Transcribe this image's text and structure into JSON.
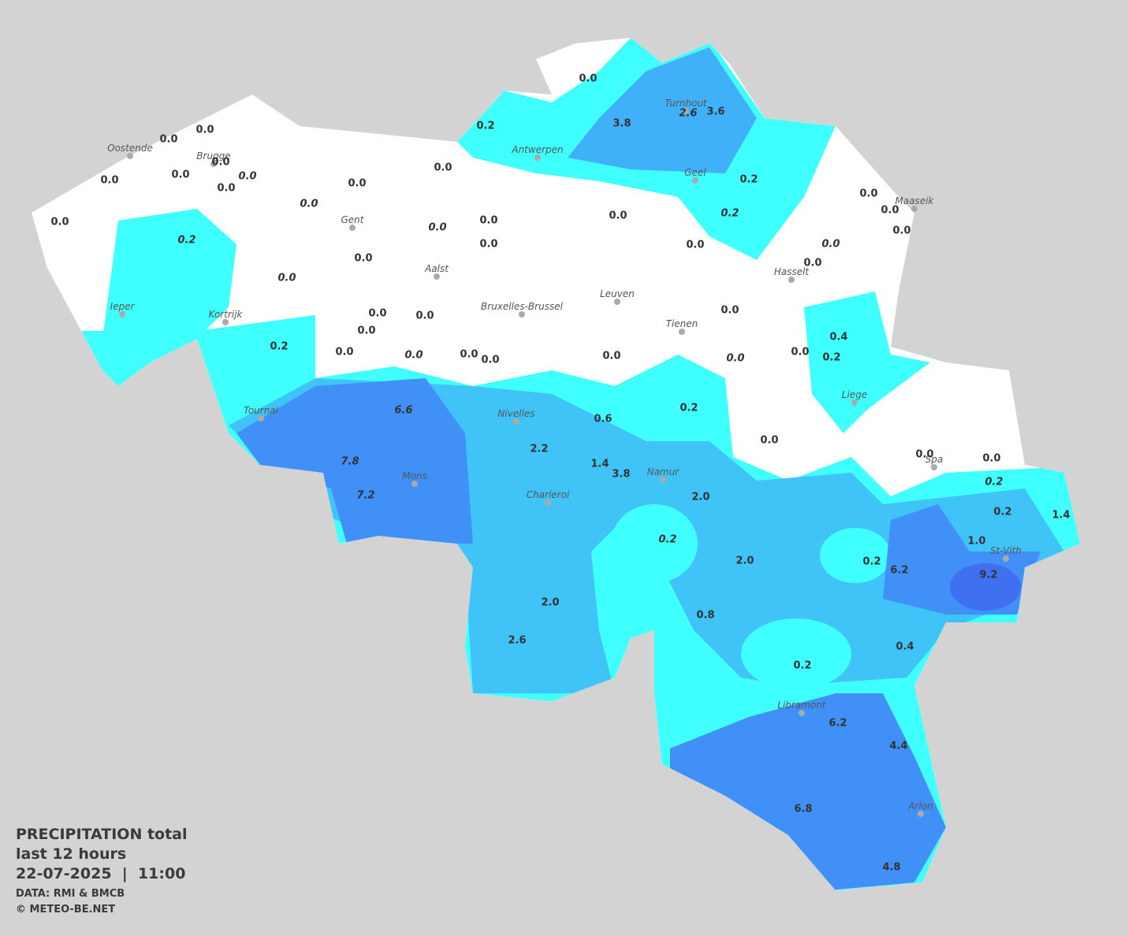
{
  "legend": {
    "title": "PRECIPITATION total",
    "period": "last 12 hours",
    "datetime": "22-07-2025  |  11:00",
    "source": "DATA: RMI & BMCB",
    "copyright": "© METEO-BE.NET"
  },
  "cities": [
    "Oostende",
    "Brugge",
    "Antwerpen",
    "Turnhout",
    "Geel",
    "Maaseik",
    "Gent",
    "Aalst",
    "Hasselt",
    "Leuven",
    "Ieper",
    "Bruxelles-Brussel",
    "Kortrijk",
    "Tienen",
    "Liege",
    "Tournai",
    "Nivelles",
    "Spa",
    "Mons",
    "Namur",
    "Charleroi",
    "St-Vith",
    "Libramont",
    "Arlon"
  ],
  "stations": [
    {
      "label": "0.0",
      "italic": false
    },
    {
      "label": "0.2",
      "italic": false
    },
    {
      "label": "3.8",
      "italic": false
    },
    {
      "label": "2.6",
      "italic": true
    },
    {
      "label": "3.6",
      "italic": false
    },
    {
      "label": "0.0",
      "italic": false
    },
    {
      "label": "0.0",
      "italic": false
    },
    {
      "label": "0.0",
      "italic": false
    },
    {
      "label": "0.0",
      "italic": false
    },
    {
      "label": "0.0",
      "italic": true
    },
    {
      "label": "0.0",
      "italic": false
    },
    {
      "label": "0.0",
      "italic": false
    },
    {
      "label": "0.0",
      "italic": false
    },
    {
      "label": "0.0",
      "italic": false
    },
    {
      "label": "0.2",
      "italic": false
    },
    {
      "label": "0.2",
      "italic": true
    },
    {
      "label": "0.0",
      "italic": true
    },
    {
      "label": "0.0",
      "italic": false
    },
    {
      "label": "0.2",
      "italic": true
    },
    {
      "label": "0.0",
      "italic": false
    },
    {
      "label": "0.0",
      "italic": true
    },
    {
      "label": "0.0",
      "italic": false
    },
    {
      "label": "0.0",
      "italic": false
    },
    {
      "label": "0.0",
      "italic": false
    },
    {
      "label": "0.0",
      "italic": false
    },
    {
      "label": "0.0",
      "italic": false
    },
    {
      "label": "0.0",
      "italic": true
    },
    {
      "label": "0.0",
      "italic": false
    },
    {
      "label": "0.0",
      "italic": false
    },
    {
      "label": "0.0",
      "italic": false
    },
    {
      "label": "0.0",
      "italic": true
    },
    {
      "label": "0.0",
      "italic": false
    },
    {
      "label": "0.0",
      "italic": false
    },
    {
      "label": "0.0",
      "italic": false
    },
    {
      "label": "0.0",
      "italic": false
    },
    {
      "label": "0.4",
      "italic": false
    },
    {
      "label": "0.2",
      "italic": false
    },
    {
      "label": "0.0",
      "italic": false
    },
    {
      "label": "0.0",
      "italic": true
    },
    {
      "label": "0.0",
      "italic": false
    },
    {
      "label": "0.0",
      "italic": false
    },
    {
      "label": "0.0",
      "italic": false
    },
    {
      "label": "0.0",
      "italic": true
    },
    {
      "label": "0.0",
      "italic": false
    },
    {
      "label": "0.2",
      "italic": false
    },
    {
      "label": "6.6",
      "italic": true
    },
    {
      "label": "0.6",
      "italic": false
    },
    {
      "label": "0.2",
      "italic": false
    },
    {
      "label": "2.2",
      "italic": false
    },
    {
      "label": "0.0",
      "italic": false
    },
    {
      "label": "0.0",
      "italic": false
    },
    {
      "label": "0.0",
      "italic": false
    },
    {
      "label": "7.8",
      "italic": true
    },
    {
      "label": "1.4",
      "italic": false
    },
    {
      "label": "3.8",
      "italic": false
    },
    {
      "label": "7.2",
      "italic": true
    },
    {
      "label": "0.2",
      "italic": true
    },
    {
      "label": "2.0",
      "italic": false
    },
    {
      "label": "0.2",
      "italic": false
    },
    {
      "label": "1.4",
      "italic": false
    },
    {
      "label": "0.2",
      "italic": true
    },
    {
      "label": "1.0",
      "italic": false
    },
    {
      "label": "2.0",
      "italic": false
    },
    {
      "label": "0.2",
      "italic": false
    },
    {
      "label": "6.2",
      "italic": false
    },
    {
      "label": "9.2",
      "italic": false
    },
    {
      "label": "2.0",
      "italic": false
    },
    {
      "label": "0.8",
      "italic": false
    },
    {
      "label": "2.6",
      "italic": false
    },
    {
      "label": "0.4",
      "italic": false
    },
    {
      "label": "0.2",
      "italic": false
    },
    {
      "label": "6.2",
      "italic": false
    },
    {
      "label": "4.4",
      "italic": false
    },
    {
      "label": "6.8",
      "italic": false
    },
    {
      "label": "4.8",
      "italic": false
    }
  ]
}
